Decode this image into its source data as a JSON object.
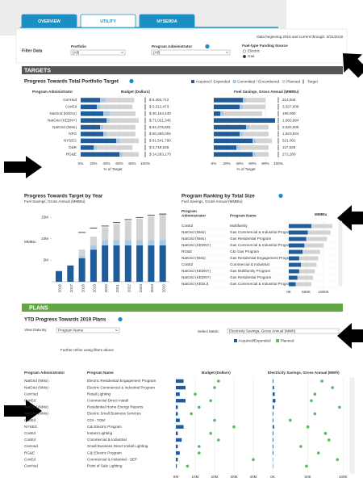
{
  "tabs": [
    "OVERVIEW",
    "UTILITY",
    "NYSERDA"
  ],
  "active_tab": 1,
  "filters": {
    "title": "Filter Data",
    "portfolio": {
      "label": "Portfolio",
      "value": "(All)"
    },
    "administrator": {
      "label": "Program Administrator",
      "value": "(All)"
    },
    "fuel": {
      "label": "Fuel-type Funding Source",
      "options": [
        "Electric",
        "Gas"
      ],
      "selected": 1
    },
    "note": "Data beginning 2016 and current through: 3/31/2018"
  },
  "targets": {
    "header": "TARGETS",
    "portfolio": {
      "title": "Progress Towards Total Portfolio Target",
      "legend": [
        "Acquired / Expended",
        "Committed / Encumbered",
        "Planned",
        "Target"
      ],
      "colors": [
        "#1f5c99",
        "#a9c8e4",
        "#d3d3d3",
        "#222222"
      ],
      "headers": {
        "admin": "Program Administrator",
        "budget": "Budget (Dollars)",
        "fuel": "Fuel Savings, Gross Annual (MMBtu)"
      },
      "axis_title": "% of Target",
      "target": 100,
      "xlim": [
        0,
        100
      ],
      "xticks": [
        {
          "value": 0,
          "label": "0%"
        },
        {
          "value": 20,
          "label": "20%"
        },
        {
          "value": 40,
          "label": "40%"
        },
        {
          "value": 60,
          "label": "60%"
        },
        {
          "value": 80,
          "label": "80%"
        },
        {
          "value": 100,
          "label": "100%"
        }
      ],
      "rows": [
        {
          "admin": "CenHud",
          "budget": [
            30,
            8,
            45
          ],
          "budget_label": "$ 6,462,712",
          "fuel": [
            45,
            5,
            30
          ],
          "fuel_label": "314,944"
        },
        {
          "admin": "ConEd",
          "budget": [
            25,
            5,
            50
          ],
          "budget_label": "$ 5,312,473",
          "fuel": [
            40,
            5,
            35
          ],
          "fuel_label": "3,327,006"
        },
        {
          "admin": "NatGrid (KEDLI)",
          "budget": [
            35,
            10,
            40
          ],
          "budget_label": "$ 30,154,440",
          "fuel": [
            10,
            5,
            60
          ],
          "fuel_label": "196,000"
        },
        {
          "admin": "NatGrid (KEDNY)",
          "budget": [
            40,
            5,
            45
          ],
          "budget_label": "$ 71,021,345",
          "fuel": [
            95,
            0,
            0
          ],
          "fuel_label": "1,660,994"
        },
        {
          "admin": "NatGrid (NMo)",
          "budget": [
            30,
            5,
            50
          ],
          "budget_label": "$ 62,275,801",
          "fuel": [
            50,
            5,
            30
          ],
          "fuel_label": "2,520,005"
        },
        {
          "admin": "NFG",
          "budget": [
            35,
            5,
            45
          ],
          "budget_label": "$ 60,256,004",
          "fuel": [
            40,
            5,
            40
          ],
          "fuel_label": "1,923,824"
        },
        {
          "admin": "NYSEG",
          "budget": [
            55,
            5,
            30
          ],
          "budget_label": "$ 81,541,790",
          "fuel": [
            60,
            5,
            25
          ],
          "fuel_label": "521,002"
        },
        {
          "admin": "O&R",
          "budget": [
            20,
            5,
            55
          ],
          "budget_label": "$ 3,719,638",
          "fuel": [
            35,
            5,
            45
          ],
          "fuel_label": "117,528"
        },
        {
          "admin": "RG&E",
          "budget": [
            60,
            5,
            25
          ],
          "budget_label": "$ 14,283,170",
          "fuel": [
            60,
            5,
            20
          ],
          "fuel_label": "272,200"
        }
      ]
    },
    "by_year": {
      "type": "bar",
      "title": "Progress Towards Target by Year",
      "subtitle": "Fuel Savings, Gross Annual (MMBtu)",
      "y_label": "MMBtu",
      "categories": [
        "2016",
        "2017",
        "2018",
        "2019",
        "2020",
        "2021",
        "2022",
        "2023",
        "2024",
        "2025"
      ],
      "series": [
        {
          "name": "Acquired / Expended",
          "color": "#1f5c99",
          "values": [
            2.5,
            3.8,
            5.5,
            7.5,
            8.5,
            8.5,
            8.5,
            8.5,
            8.5,
            8.5
          ]
        },
        {
          "name": "Committed / Encumbered",
          "color": "#a9c8e4",
          "values": [
            0,
            0,
            0.5,
            1,
            1.2,
            1.2,
            1.2,
            1.2,
            1.2,
            1.2
          ]
        },
        {
          "name": "Planned",
          "color": "#d3d3d3",
          "values": [
            0,
            0,
            1.5,
            2,
            3,
            3.8,
            4.5,
            5,
            5.5,
            6
          ]
        }
      ],
      "target": [
        null,
        null,
        11.5,
        12.5,
        13,
        13.8,
        14.5,
        15,
        15.5,
        15.8
      ],
      "ylim": [
        0,
        16
      ],
      "yticks": [
        {
          "value": 5,
          "label": "5M"
        },
        {
          "value": 10,
          "label": "10M"
        },
        {
          "value": 15,
          "label": "15M"
        }
      ]
    },
    "ranking": {
      "title": "Program Ranking by Total Size",
      "subtitle": "Fuel Savings, Gross Annual (MMBtu)",
      "headers": {
        "admin": [
          "Program",
          "Administrator"
        ],
        "program": "Program Name",
        "value": "MMBtu"
      },
      "colors": [
        "#1f5c99",
        "#d3d3d3"
      ],
      "xlim": [
        0,
        1300
      ],
      "xticks": [
        {
          "value": 0,
          "label": "0K"
        },
        {
          "value": 500,
          "label": "500K"
        },
        {
          "value": 1000,
          "label": "1000K"
        }
      ],
      "rows": [
        {
          "admin": "ConEd",
          "program": "Multifamily",
          "acquired": 650,
          "planned": 600
        },
        {
          "admin": "NatGrid (NMo)",
          "program": "Gas Commercial & Industrial Program",
          "acquired": 550,
          "planned": 650
        },
        {
          "admin": "NatGrid (NMo)",
          "program": "Gas Residential Program",
          "acquired": 500,
          "planned": 600
        },
        {
          "admin": "NatGrid (KEDNY)",
          "program": "Gas Commercial & Industrial Program",
          "acquired": 450,
          "planned": 550
        },
        {
          "admin": "RG&E",
          "program": "C&I Gas Program",
          "acquired": 400,
          "planned": 500
        },
        {
          "admin": "NatGrid (NMo)",
          "program": "Gas Residential Engagement Program",
          "acquired": 300,
          "planned": 550
        },
        {
          "admin": "ConEd",
          "program": "Commercial & Industrial",
          "acquired": 350,
          "planned": 450
        },
        {
          "admin": "NatGrid (KEDNY)",
          "program": "Gas Multifamily Program",
          "acquired": 300,
          "planned": 450
        },
        {
          "admin": "NatGrid (KEDNY)",
          "program": "Gas Residential Program",
          "acquired": 250,
          "planned": 450
        },
        {
          "admin": "NatGrid (KEDLI)",
          "program": "Gas Commercial & Industrial Program",
          "acquired": 200,
          "planned": 450
        }
      ]
    }
  },
  "plans": {
    "header": "PLANS",
    "title": "YTD Progress Towards 2019 Plans",
    "view_by": {
      "label": "View Data By",
      "value": "Program Name"
    },
    "metric": {
      "label": "Select Metric",
      "value": "Electricity Savings, Gross Annual (MWh)"
    },
    "legend": [
      "Acquired/Expended",
      "Planned"
    ],
    "colors": [
      "#1f5c99",
      "#5cb85c"
    ],
    "note": "Further refine using filters above",
    "headers": {
      "admin": "Program Administrator",
      "program": "Program Name",
      "budget": "Budget (Dollars)",
      "elec": "Electricity Savings, Gross Annual (MWh)"
    },
    "budget_xlim": [
      0,
      45
    ],
    "budget_xticks": [
      {
        "value": 0,
        "label": "0M"
      },
      {
        "value": 10,
        "label": "10M"
      },
      {
        "value": 20,
        "label": "20M"
      },
      {
        "value": 30,
        "label": "30M"
      },
      {
        "value": 40,
        "label": "40M"
      }
    ],
    "elec_xlim": [
      0,
      110
    ],
    "elec_xticks": [
      {
        "value": 0,
        "label": "0K"
      },
      {
        "value": 50,
        "label": "50K"
      },
      {
        "value": 100,
        "label": "100K"
      }
    ],
    "rows": [
      {
        "admin": "NatGrid (NMo)",
        "program": "Electric Residential Engagement Program",
        "budget": [
          4,
          22
        ],
        "elec": [
          1,
          70
        ]
      },
      {
        "admin": "NatGrid (NMo)",
        "program": "Electric Commercial & Industrial Program",
        "budget": [
          5,
          20
        ],
        "elec": [
          2,
          85
        ]
      },
      {
        "admin": "CenHud",
        "program": "Retail Lighting",
        "budget": [
          2,
          10
        ],
        "elec": [
          3,
          60
        ]
      },
      {
        "admin": "ConEd",
        "program": "Commercial Direct Install",
        "budget": [
          5,
          18
        ],
        "elec": [
          4,
          55
        ]
      },
      {
        "admin": "NatGrid (NMo)",
        "program": "Residential Home Energy Reports",
        "budget": [
          1,
          12
        ],
        "elec": [
          2,
          95
        ]
      },
      {
        "admin": "NatGrid (NMo)",
        "program": "Electric Small Business Services",
        "budget": [
          1,
          8
        ],
        "elec": [
          1,
          60
        ]
      },
      {
        "admin": "ConEd",
        "program": "CDI - TOM",
        "budget": [
          2,
          20
        ],
        "elec": [
          1,
          25
        ]
      },
      {
        "admin": "NYSEG",
        "program": "C&I Electric Program",
        "budget": [
          4,
          30
        ],
        "elec": [
          2,
          50
        ]
      },
      {
        "admin": "ConEd",
        "program": "Instant Lighting",
        "budget": [
          1,
          18
        ],
        "elec": [
          1,
          75
        ]
      },
      {
        "admin": "ConEd",
        "program": "Commercial & Industrial",
        "budget": [
          3,
          22
        ],
        "elec": [
          1,
          80
        ]
      },
      {
        "admin": "CenHud",
        "program": "Small Business Direct Install Lighting",
        "budget": [
          1,
          12
        ],
        "elec": [
          1,
          40
        ]
      },
      {
        "admin": "RG&E",
        "program": "C&I Electric Program",
        "budget": [
          2,
          12
        ],
        "elec": [
          1,
          65
        ]
      },
      {
        "admin": "ConEd",
        "program": "Commercial & Industrial - SEP",
        "budget": [
          1,
          40
        ],
        "elec": [
          0.5,
          92
        ]
      },
      {
        "admin": "CenHud",
        "program": "Point of Sale Lighting",
        "budget": [
          0.5,
          6
        ],
        "elec": [
          0.5,
          48
        ]
      }
    ]
  }
}
